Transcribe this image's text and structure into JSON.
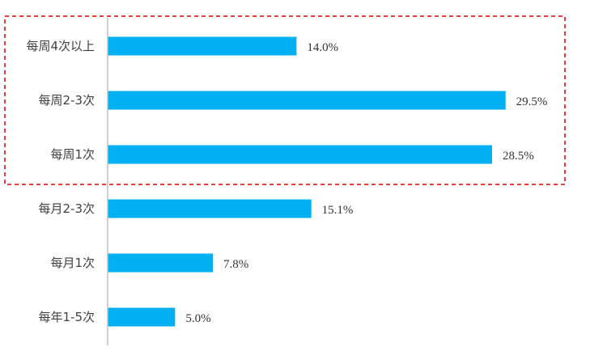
{
  "chart_data": {
    "type": "bar",
    "orientation": "horizontal",
    "categories": [
      "每周4次以上",
      "每周2-3次",
      "每周1次",
      "每月2-3次",
      "每月1次",
      "每年1-5次"
    ],
    "values": [
      14.0,
      29.5,
      28.5,
      15.1,
      7.8,
      5.0
    ],
    "value_labels": [
      "14.0%",
      "29.5%",
      "28.5%",
      "15.1%",
      "7.8%",
      "5.0%"
    ],
    "unit": "%",
    "xlim": [
      0,
      30
    ],
    "title": "",
    "xlabel": "",
    "ylabel": "",
    "grid": false,
    "legend": "none",
    "bar_color": "#00B0F0",
    "axis_color": "#BFBFBF",
    "highlight": {
      "categories": [
        "每周4次以上",
        "每周2-3次",
        "每周1次"
      ],
      "border_style": "dashed",
      "border_color": "#E00000"
    }
  }
}
